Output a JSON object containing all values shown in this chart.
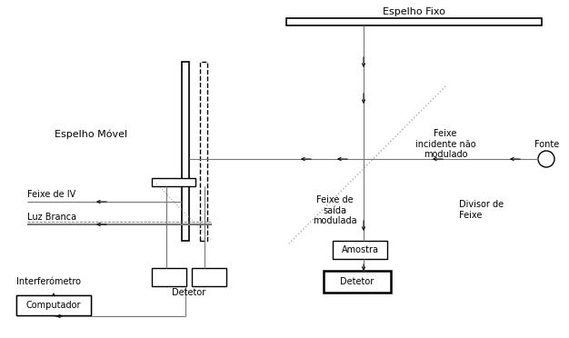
{
  "figsize": [
    6.26,
    3.72
  ],
  "dpi": 100,
  "bg_color": "#ffffff",
  "black": "#000000",
  "gray": "#777777",
  "lgray": "#aaaaaa",
  "espelho_fixo_label": "Espelho Fixo",
  "espelho_movel_label": "Espelho Móvel",
  "fonte_label": "Fonte",
  "divisor_label": "Divisor de\nFeixe",
  "feixe_incident_label": "Feixe\nincidente não\nmodulado",
  "feixe_saida_label": "Feixe de\nsaída\nmodulada",
  "feixe_iv_label": "Feixe de IV",
  "luz_branca_label": "Luz Branca",
  "interferometro_label": "Interferómetro",
  "detetor_left_label": "Detetor",
  "detetor_right_label": "Detetor",
  "amostra_label": "Amostra",
  "computador_label": "Computador",
  "fs": 7,
  "fm": 8
}
